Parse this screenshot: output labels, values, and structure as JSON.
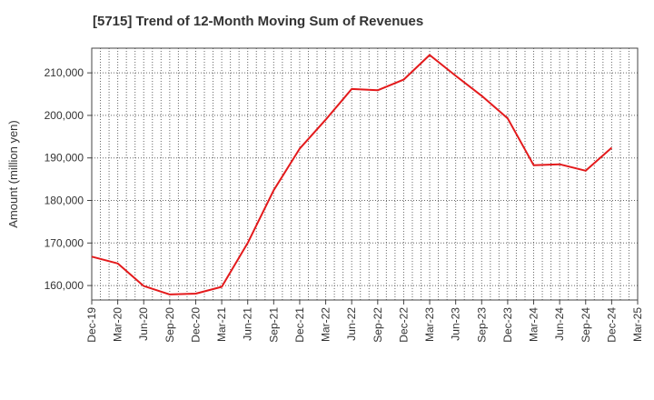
{
  "chart_data": {
    "type": "line",
    "title": "[5715]  Trend of 12-Month Moving Sum of Revenues",
    "xlabel": "",
    "ylabel": "Amount (million yen)",
    "x_tick_labels": [
      "Dec-19",
      "Mar-20",
      "Jun-20",
      "Sep-20",
      "Dec-20",
      "Mar-21",
      "Jun-21",
      "Sep-21",
      "Dec-21",
      "Mar-22",
      "Jun-22",
      "Sep-22",
      "Dec-22",
      "Mar-23",
      "Jun-23",
      "Sep-23",
      "Dec-23",
      "Mar-24",
      "Jun-24",
      "Sep-24",
      "Dec-24",
      "Mar-25"
    ],
    "y_ticks": [
      160000,
      170000,
      180000,
      190000,
      200000,
      210000
    ],
    "y_tick_labels": [
      "160,000",
      "170,000",
      "180,000",
      "190,000",
      "200,000",
      "210,000"
    ],
    "ylim": [
      156600,
      215800
    ],
    "grid": true,
    "series": [
      {
        "color": "#e31a1c",
        "x": [
          "Dec-19",
          "Mar-20",
          "Jun-20",
          "Sep-20",
          "Dec-20",
          "Mar-21",
          "Jun-21",
          "Sep-21",
          "Dec-21",
          "Mar-22",
          "Jun-22",
          "Sep-22",
          "Dec-22",
          "Mar-23",
          "Jun-23",
          "Sep-23",
          "Dec-23",
          "Mar-24",
          "Jun-24",
          "Sep-24",
          "Dec-24"
        ],
        "values": [
          166800,
          165200,
          159900,
          157900,
          158100,
          159700,
          170000,
          182400,
          192200,
          199000,
          206200,
          205900,
          208400,
          214200,
          209300,
          204600,
          199300,
          188300,
          188500,
          187000,
          192400
        ]
      }
    ]
  }
}
